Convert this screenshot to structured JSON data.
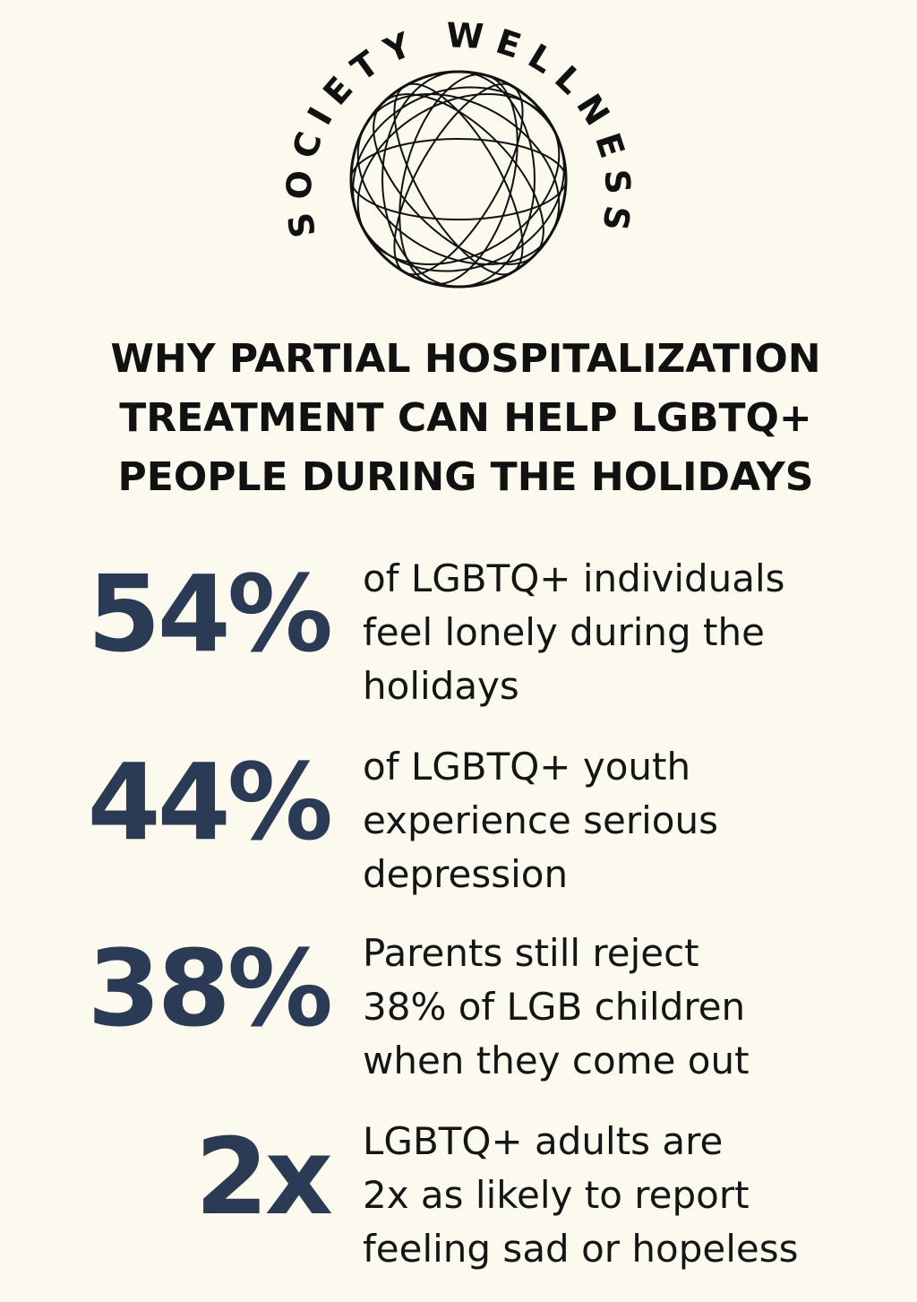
{
  "logo": {
    "text": "SOCIETY WELLNESS"
  },
  "title": {
    "lines": [
      "WHY PARTIAL HOSPITALIZATION",
      "TREATMENT CAN HELP LGBTQ+",
      "PEOPLE DURING THE HOLIDAYS"
    ]
  },
  "stats": [
    {
      "figure": "54%",
      "lines": [
        "of LGBTQ+ individuals",
        "feel lonely during the",
        "holidays"
      ]
    },
    {
      "figure": "44%",
      "lines": [
        "of LGBTQ+ youth",
        "experience serious",
        "depression"
      ]
    },
    {
      "figure": "38%",
      "lines": [
        "Parents still reject",
        "38% of LGB children",
        "when they come out"
      ]
    },
    {
      "figure": "2x",
      "lines": [
        "LGBTQ+ adults are",
        "2x as likely to report",
        "feeling sad or hopeless"
      ]
    }
  ]
}
